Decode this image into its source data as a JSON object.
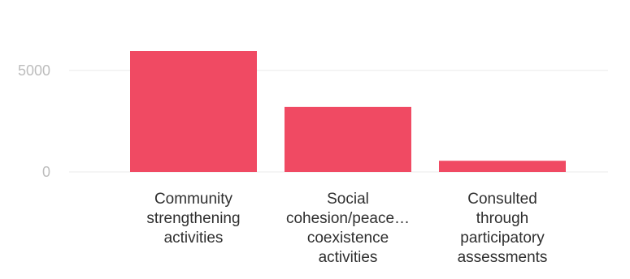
{
  "chart_data": {
    "type": "bar",
    "categories": [
      "Community strengthening activities",
      "Social cohesion/peace… coexistence activities",
      "Consulted through participatory assessments"
    ],
    "category_label_lines": [
      [
        "Community",
        "strengthening",
        "activities"
      ],
      [
        "Social",
        "cohesion/peace…",
        "coexistence",
        "activities"
      ],
      [
        "Consulted",
        "through",
        "participatory",
        "assessments"
      ]
    ],
    "values": [
      5950,
      3200,
      550
    ],
    "y_ticks": [
      0,
      5000
    ],
    "ylim": [
      0,
      5950
    ],
    "bar_color": "#f04a63",
    "grid": true,
    "title": "",
    "xlabel": "",
    "ylabel": ""
  }
}
